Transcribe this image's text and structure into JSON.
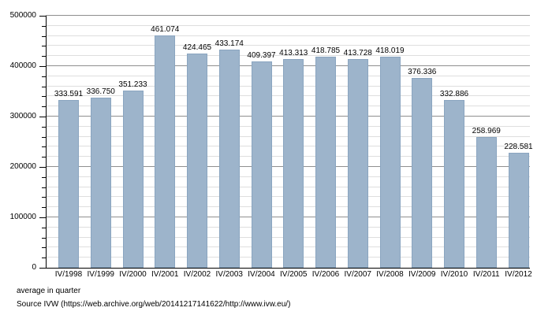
{
  "chart_data": {
    "type": "bar",
    "title": "",
    "xlabel": "",
    "ylabel": "",
    "categories": [
      "IV/1998",
      "IV/1999",
      "IV/2000",
      "IV/2001",
      "IV/2002",
      "IV/2003",
      "IV/2004",
      "IV/2005",
      "IV/2006",
      "IV/2007",
      "IV/2008",
      "IV/2009",
      "IV/2010",
      "IV/2011",
      "IV/2012"
    ],
    "values": [
      333591,
      336750,
      351233,
      461074,
      424465,
      433174,
      409397,
      413313,
      418785,
      413728,
      418019,
      376336,
      332886,
      258969,
      228581
    ],
    "value_labels": [
      "333.591",
      "336.750",
      "351.233",
      "461.074",
      "424.465",
      "433.174",
      "409.397",
      "413.313",
      "418.785",
      "413.728",
      "418.019",
      "376.336",
      "332.886",
      "258.969",
      "228.581"
    ],
    "ylim": [
      0,
      500000
    ],
    "y_major_step": 100000,
    "y_minor_step": 20000,
    "y_tick_labels": [
      "0",
      "100000",
      "200000",
      "300000",
      "400000",
      "500000"
    ],
    "grid": "on",
    "legend": "none",
    "colors": {
      "bar_fill": "#9db4cb",
      "bar_border": "#8aa5c0",
      "major_grid": "#8f8f8f",
      "minor_grid": "#dedede",
      "axis": "#000000"
    }
  },
  "footer": {
    "line1": "average in quarter",
    "line2": "Source IVW (https://web.archive.org/web/20141217141622/http://www.ivw.eu/)"
  }
}
